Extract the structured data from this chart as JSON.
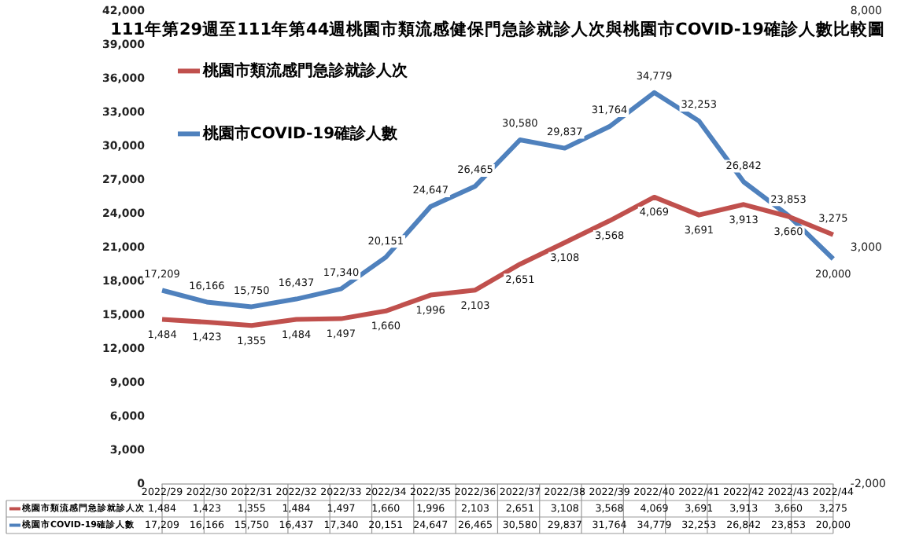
{
  "chart_data": {
    "type": "line",
    "title": "111年第29週至111年第44週桃園市類流感健保門急診就診人次與桃園市COVID-19確診人數比較圖",
    "categories": [
      "2022/29",
      "2022/30",
      "2022/31",
      "2022/32",
      "2022/33",
      "2022/34",
      "2022/35",
      "2022/36",
      "2022/37",
      "2022/38",
      "2022/39",
      "2022/40",
      "2022/41",
      "2022/42",
      "2022/43",
      "2022/44"
    ],
    "series": [
      {
        "name": "桃園市類流感門急診就診人次",
        "color": "#c0504d",
        "axis": "y2",
        "values": [
          1484,
          1423,
          1355,
          1484,
          1497,
          1660,
          1996,
          2103,
          2651,
          3108,
          3568,
          4069,
          3691,
          3913,
          3660,
          3275
        ],
        "value_labels": [
          "1,484",
          "1,423",
          "1,355",
          "1,484",
          "1,497",
          "1,660",
          "1,996",
          "2,103",
          "2,651",
          "3,108",
          "3,568",
          "4,069",
          "3,691",
          "3,913",
          "3,660",
          "3,275"
        ]
      },
      {
        "name": "桃園市COVID-19確診人數",
        "color": "#4f81bd",
        "values": [
          17209,
          16166,
          15750,
          16437,
          17340,
          20151,
          24647,
          26465,
          30580,
          29837,
          31764,
          34779,
          32253,
          26842,
          23853,
          20000
        ],
        "value_labels": [
          "17,209",
          "16,166",
          "15,750",
          "16,437",
          "17,340",
          "20,151",
          "24,647",
          "26,465",
          "30,580",
          "29,837",
          "31,764",
          "34,779",
          "32,253",
          "26,842",
          "23,853",
          "20,000"
        ]
      }
    ],
    "ylim": [
      0,
      42000
    ],
    "yticks": [
      {
        "value": 0,
        "label": "0"
      },
      {
        "value": 3000,
        "label": "3,000"
      },
      {
        "value": 6000,
        "label": "6,000"
      },
      {
        "value": 9000,
        "label": "9,000"
      },
      {
        "value": 12000,
        "label": "12,000"
      },
      {
        "value": 15000,
        "label": "15,000"
      },
      {
        "value": 18000,
        "label": "18,000"
      },
      {
        "value": 21000,
        "label": "21,000"
      },
      {
        "value": 24000,
        "label": "24,000"
      },
      {
        "value": 27000,
        "label": "27,000"
      },
      {
        "value": 30000,
        "label": "30,000"
      },
      {
        "value": 33000,
        "label": "33,000"
      },
      {
        "value": 36000,
        "label": "36,000"
      },
      {
        "value": 39000,
        "label": "39,000"
      },
      {
        "value": 42000,
        "label": "42,000"
      }
    ],
    "y2lim": [
      -2000,
      8000
    ],
    "y2ticks": [
      {
        "value": -2000,
        "label": "-2,000"
      },
      {
        "value": 3000,
        "label": "3,000"
      },
      {
        "value": 8000,
        "label": "8,000"
      }
    ],
    "legend": "top left",
    "grid": false,
    "marker": "none",
    "line_style": "solid"
  }
}
